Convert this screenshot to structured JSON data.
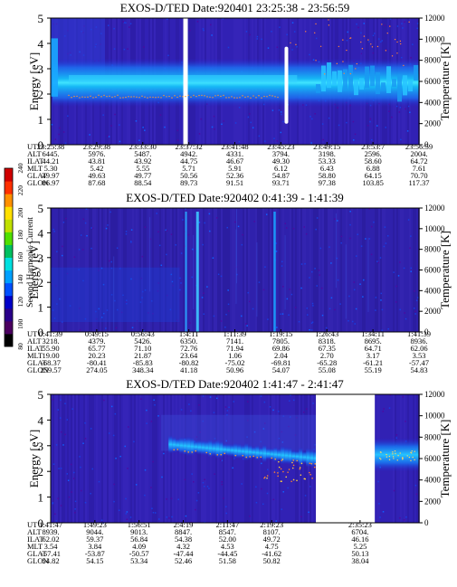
{
  "chart_data": [
    {
      "type": "heatmap",
      "title": "EXOS-D/TED   Date:920401  23:25:38 - 23:56:59",
      "ylabel": "Energy [eV]",
      "ylabel_right": "Temperature [K]",
      "ylim": [
        0,
        5
      ],
      "yticks": [
        0,
        1,
        2,
        3,
        4,
        5
      ],
      "ylim_right": [
        0,
        12000
      ],
      "yticks_right": [
        0,
        2000,
        4000,
        6000,
        8000,
        10000,
        12000
      ],
      "x_time_ticks": [
        "23:25:38",
        "23:29:38",
        "23:33:30",
        "23:37:32",
        "23:41:48",
        "23:45:23",
        "23:49:15",
        "23:53:7",
        "23:56:59"
      ],
      "ephemeris": [
        {
          "name": "UT",
          "values": [
            "23:25:38",
            "23:29:38",
            "23:33:30",
            "23:37:32",
            "23:41:48",
            "23:45:23",
            "23:49:15",
            "23:53:7",
            "23:56:59"
          ]
        },
        {
          "name": "ALT",
          "values": [
            "6445.",
            "5976.",
            "5487.",
            "4942.",
            "4331.",
            "3794.",
            "3198.",
            "2596.",
            "2004."
          ]
        },
        {
          "name": "ILAT",
          "values": [
            "44.21",
            "43.81",
            "43.92",
            "44.75",
            "46.67",
            "49.30",
            "53.33",
            "58.60",
            "64.72"
          ]
        },
        {
          "name": "MLT",
          "values": [
            "5.30",
            "5.42",
            "5.55",
            "5.71",
            "5.91",
            "6.12",
            "6.43",
            "6.88",
            "7.61"
          ]
        },
        {
          "name": "GLAT",
          "values": [
            "49.97",
            "49.63",
            "49.77",
            "50.56",
            "52.36",
            "54.87",
            "58.80",
            "64.15",
            "70.70"
          ]
        },
        {
          "name": "GLON",
          "values": [
            "86.97",
            "87.68",
            "88.54",
            "89.73",
            "91.51",
            "93.71",
            "97.38",
            "103.85",
            "117.37"
          ]
        }
      ],
      "data_gaps": [
        0.36
      ]
    },
    {
      "type": "heatmap",
      "title": "EXOS-D/TED   Date:920402  0:41:39 - 1:41:39",
      "ylabel": "Energy [eV]",
      "ylabel_right": "Temperature [K]",
      "ylim": [
        0,
        5
      ],
      "yticks": [
        0,
        1,
        2,
        3,
        4,
        5
      ],
      "ylim_right": [
        0,
        12000
      ],
      "yticks_right": [
        0,
        2000,
        4000,
        6000,
        8000,
        10000,
        12000
      ],
      "x_time_ticks": [
        "0:41:39",
        "0:49:15",
        "0:56:43",
        "1:4:11",
        "1:11:39",
        "1:19:15",
        "1:26:43",
        "1:34:11",
        "1:41:39"
      ],
      "ephemeris": [
        {
          "name": "UT",
          "values": [
            "0:41:39",
            "0:49:15",
            "0:56:43",
            "1:4:11",
            "1:11:39",
            "1:19:15",
            "1:26:43",
            "1:34:11",
            "1:41:39"
          ]
        },
        {
          "name": "ALT",
          "values": [
            "3218.",
            "4379.",
            "5426.",
            "6350.",
            "7141.",
            "7805.",
            "8318.",
            "8695.",
            "8936."
          ]
        },
        {
          "name": "ILAT",
          "values": [
            "55.90",
            "65.77",
            "71.10",
            "72.76",
            "71.94",
            "69.86",
            "67.35",
            "64.71",
            "62.06"
          ]
        },
        {
          "name": "MLT",
          "values": [
            "19.00",
            "20.23",
            "21.87",
            "23.64",
            "1.06",
            "2.04",
            "2.70",
            "3.17",
            "3.53"
          ]
        },
        {
          "name": "GLAT",
          "values": [
            "-68.37",
            "-80.41",
            "-85.83",
            "-80.82",
            "-75.02",
            "-69.81",
            "-65.28",
            "-61.21",
            "-57.47"
          ]
        },
        {
          "name": "GLON",
          "values": [
            "259.57",
            "274.05",
            "348.34",
            "41.18",
            "50.96",
            "54.07",
            "55.08",
            "55.19",
            "54.83"
          ]
        }
      ]
    },
    {
      "type": "heatmap",
      "title": "EXOS-D/TED   Date:920402  1:41:47 - 2:41:47",
      "ylabel": "Energy [eV]",
      "ylabel_right": "Temperature [K]",
      "ylim": [
        0,
        5
      ],
      "yticks": [
        0,
        1,
        2,
        3,
        4,
        5
      ],
      "ylim_right": [
        0,
        12000
      ],
      "yticks_right": [
        0,
        2000,
        4000,
        6000,
        8000,
        10000,
        12000
      ],
      "x_time_ticks": [
        "1:41:47",
        "1:49:23",
        "1:56:51",
        "2:4:19",
        "2:11:47",
        "2:19:23",
        "2:35:23"
      ],
      "ephemeris": [
        {
          "name": "UT",
          "values": [
            "1:41:47",
            "1:49:23",
            "1:56:51",
            "2:4:19",
            "2:11:47",
            "2:19:23",
            "2:35:23"
          ]
        },
        {
          "name": "ALT",
          "values": [
            "8939.",
            "9044.",
            "9013.",
            "8847.",
            "8547.",
            "8107.",
            "6704."
          ]
        },
        {
          "name": "ILAT",
          "values": [
            "62.02",
            "59.37",
            "56.84",
            "54.38",
            "52.00",
            "49.72",
            "46.16"
          ]
        },
        {
          "name": "MLT",
          "values": [
            "3.54",
            "3.84",
            "4.09",
            "4.32",
            "4.53",
            "4.75",
            "5.25"
          ]
        },
        {
          "name": "GLAT",
          "values": [
            "-57.41",
            "-53.87",
            "-50.57",
            "-47.44",
            "-44.45",
            "-41.62",
            "50.13"
          ]
        },
        {
          "name": "GLON",
          "values": [
            "54.82",
            "54.15",
            "53.34",
            "52.46",
            "51.58",
            "50.82",
            "38.04"
          ]
        }
      ],
      "data_gaps": [
        [
          0.72,
          0.88
        ]
      ]
    }
  ],
  "colorbar": {
    "label": "Second Harmonic Current",
    "range": [
      80,
      240
    ],
    "ticks": [
      80,
      100,
      120,
      140,
      160,
      180,
      200,
      220,
      240
    ],
    "colors": [
      "#000000",
      "#4b0060",
      "#2a008a",
      "#0000c8",
      "#0050ff",
      "#00a0ff",
      "#00e0e0",
      "#00c060",
      "#50e000",
      "#c0e000",
      "#ffe000",
      "#ff9000",
      "#ff3000",
      "#d00000"
    ]
  }
}
